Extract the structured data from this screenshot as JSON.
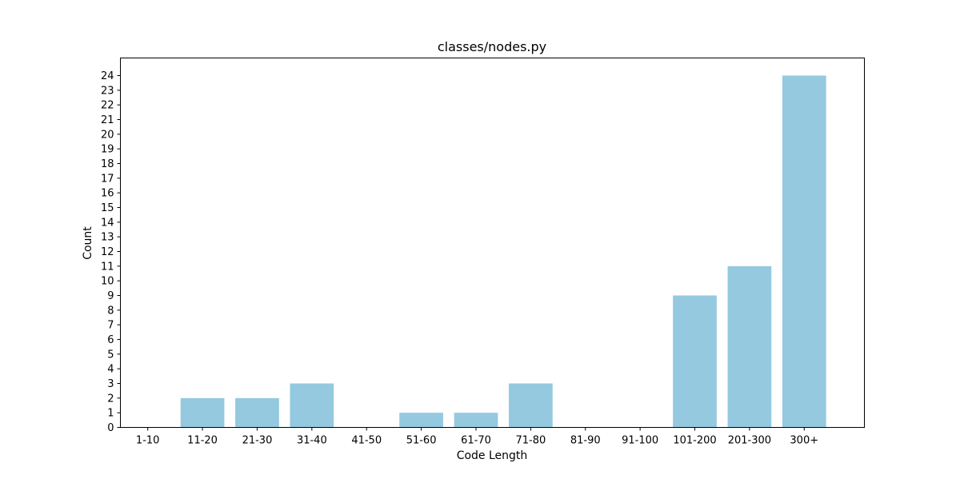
{
  "chart_data": {
    "type": "bar",
    "title": "classes/nodes.py",
    "xlabel": "Code Length",
    "ylabel": "Count",
    "categories": [
      "1-10",
      "11-20",
      "21-30",
      "31-40",
      "41-50",
      "51-60",
      "61-70",
      "71-80",
      "81-90",
      "91-100",
      "101-200",
      "201-300",
      "300+"
    ],
    "values": [
      0,
      2,
      2,
      3,
      0,
      1,
      1,
      3,
      0,
      0,
      9,
      11,
      24
    ],
    "ylim": [
      0,
      25.2
    ],
    "yticks": [
      0,
      1,
      2,
      3,
      4,
      5,
      6,
      7,
      8,
      9,
      10,
      11,
      12,
      13,
      14,
      15,
      16,
      17,
      18,
      19,
      20,
      21,
      22,
      23,
      24
    ],
    "bar_color": "#94c9e0",
    "grid": false,
    "legend": "none"
  }
}
